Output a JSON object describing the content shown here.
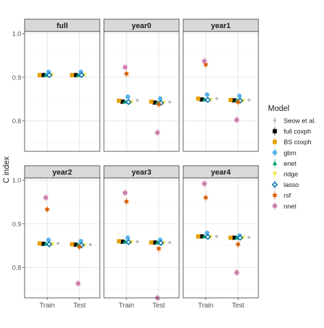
{
  "chart_data": {
    "type": "scatter",
    "ylabel": "C index",
    "xlabel": "",
    "categories": [
      "Train",
      "Test"
    ],
    "ylim": [
      0.73,
      1.005
    ],
    "yticks": [
      0.8,
      0.9,
      1.0
    ],
    "ytick_labels": [
      "0.8",
      "0.9",
      "1.0"
    ],
    "grid": true,
    "legend_position": "right",
    "legend_title": "Model",
    "models": [
      {
        "name": "Seow et al.",
        "color": "#bdbdbd",
        "shape": "circle-small"
      },
      {
        "name": "full coxph",
        "color": "#000000",
        "shape": "square"
      },
      {
        "name": "BS coxph",
        "color": "#e69f00",
        "shape": "square"
      },
      {
        "name": "gbm",
        "color": "#56b4e9",
        "shape": "circle"
      },
      {
        "name": "enet",
        "color": "#009e73",
        "shape": "triangle"
      },
      {
        "name": "ridge",
        "color": "#f0e442",
        "shape": "triangle-down"
      },
      {
        "name": "lasso",
        "color": "#0072b2",
        "shape": "diamond"
      },
      {
        "name": "rsf",
        "color": "#d55e00",
        "shape": "star"
      },
      {
        "name": "nnet",
        "color": "#cc79a7",
        "shape": "asterisk"
      }
    ],
    "panels": [
      {
        "title": "full",
        "Train": {
          "Seow et al.": null,
          "full coxph": 0.905,
          "BS coxph": 0.905,
          "gbm": 0.912,
          "enet": 0.905,
          "ridge": 0.905,
          "lasso": 0.905,
          "rsf": null,
          "nnet": null
        },
        "Test": {
          "Seow et al.": null,
          "full coxph": 0.905,
          "BS coxph": 0.905,
          "gbm": 0.912,
          "enet": 0.905,
          "ridge": 0.905,
          "lasso": 0.905,
          "rsf": null,
          "nnet": null
        }
      },
      {
        "title": "year0",
        "Train": {
          "Seow et al.": 0.847,
          "full coxph": 0.844,
          "BS coxph": 0.846,
          "gbm": 0.855,
          "enet": 0.844,
          "ridge": 0.843,
          "lasso": 0.843,
          "rsf": 0.908,
          "nnet": 0.923
        },
        "Test": {
          "Seow et al.": 0.843,
          "full coxph": 0.842,
          "BS coxph": 0.844,
          "gbm": 0.851,
          "enet": 0.842,
          "ridge": 0.841,
          "lasso": 0.841,
          "rsf": 0.838,
          "nnet": 0.773
        }
      },
      {
        "title": "year1",
        "Train": {
          "Seow et al.": 0.851,
          "full coxph": 0.849,
          "BS coxph": 0.851,
          "gbm": 0.86,
          "enet": 0.849,
          "ridge": 0.848,
          "lasso": 0.848,
          "rsf": 0.929,
          "nnet": 0.937
        },
        "Test": {
          "Seow et al.": 0.848,
          "full coxph": 0.847,
          "BS coxph": 0.848,
          "gbm": 0.857,
          "enet": 0.847,
          "ridge": 0.846,
          "lasso": 0.846,
          "rsf": 0.843,
          "nnet": 0.802
        }
      },
      {
        "title": "year2",
        "Train": {
          "Seow et al.": 0.855,
          "full coxph": 0.854,
          "BS coxph": 0.855,
          "gbm": 0.863,
          "enet": 0.854,
          "ridge": 0.853,
          "lasso": 0.853,
          "rsf": 0.933,
          "nnet": 0.96
        },
        "Test": {
          "Seow et al.": 0.852,
          "full coxph": 0.852,
          "BS coxph": 0.853,
          "gbm": 0.86,
          "enet": 0.852,
          "ridge": 0.851,
          "lasso": 0.851,
          "rsf": 0.847,
          "nnet": 0.763
        }
      },
      {
        "title": "year3",
        "Train": {
          "Seow et al.": 0.859,
          "full coxph": 0.859,
          "BS coxph": 0.86,
          "gbm": 0.868,
          "enet": 0.859,
          "ridge": 0.858,
          "lasso": 0.858,
          "rsf": 0.951,
          "nnet": 0.971
        },
        "Test": {
          "Seow et al.": 0.857,
          "full coxph": 0.857,
          "BS coxph": 0.857,
          "gbm": 0.863,
          "enet": 0.857,
          "ridge": 0.856,
          "lasso": 0.856,
          "rsf": 0.843,
          "nnet": 0.73
        }
      },
      {
        "title": "year4",
        "Train": {
          "Seow et al.": 0.871,
          "full coxph": 0.871,
          "BS coxph": 0.871,
          "gbm": 0.879,
          "enet": 0.871,
          "ridge": 0.87,
          "lasso": 0.87,
          "rsf": 0.96,
          "nnet": 0.992
        },
        "Test": {
          "Seow et al.": 0.869,
          "full coxph": 0.868,
          "BS coxph": 0.868,
          "gbm": 0.873,
          "enet": 0.868,
          "ridge": 0.868,
          "lasso": 0.868,
          "rsf": 0.853,
          "nnet": 0.788
        }
      }
    ]
  }
}
